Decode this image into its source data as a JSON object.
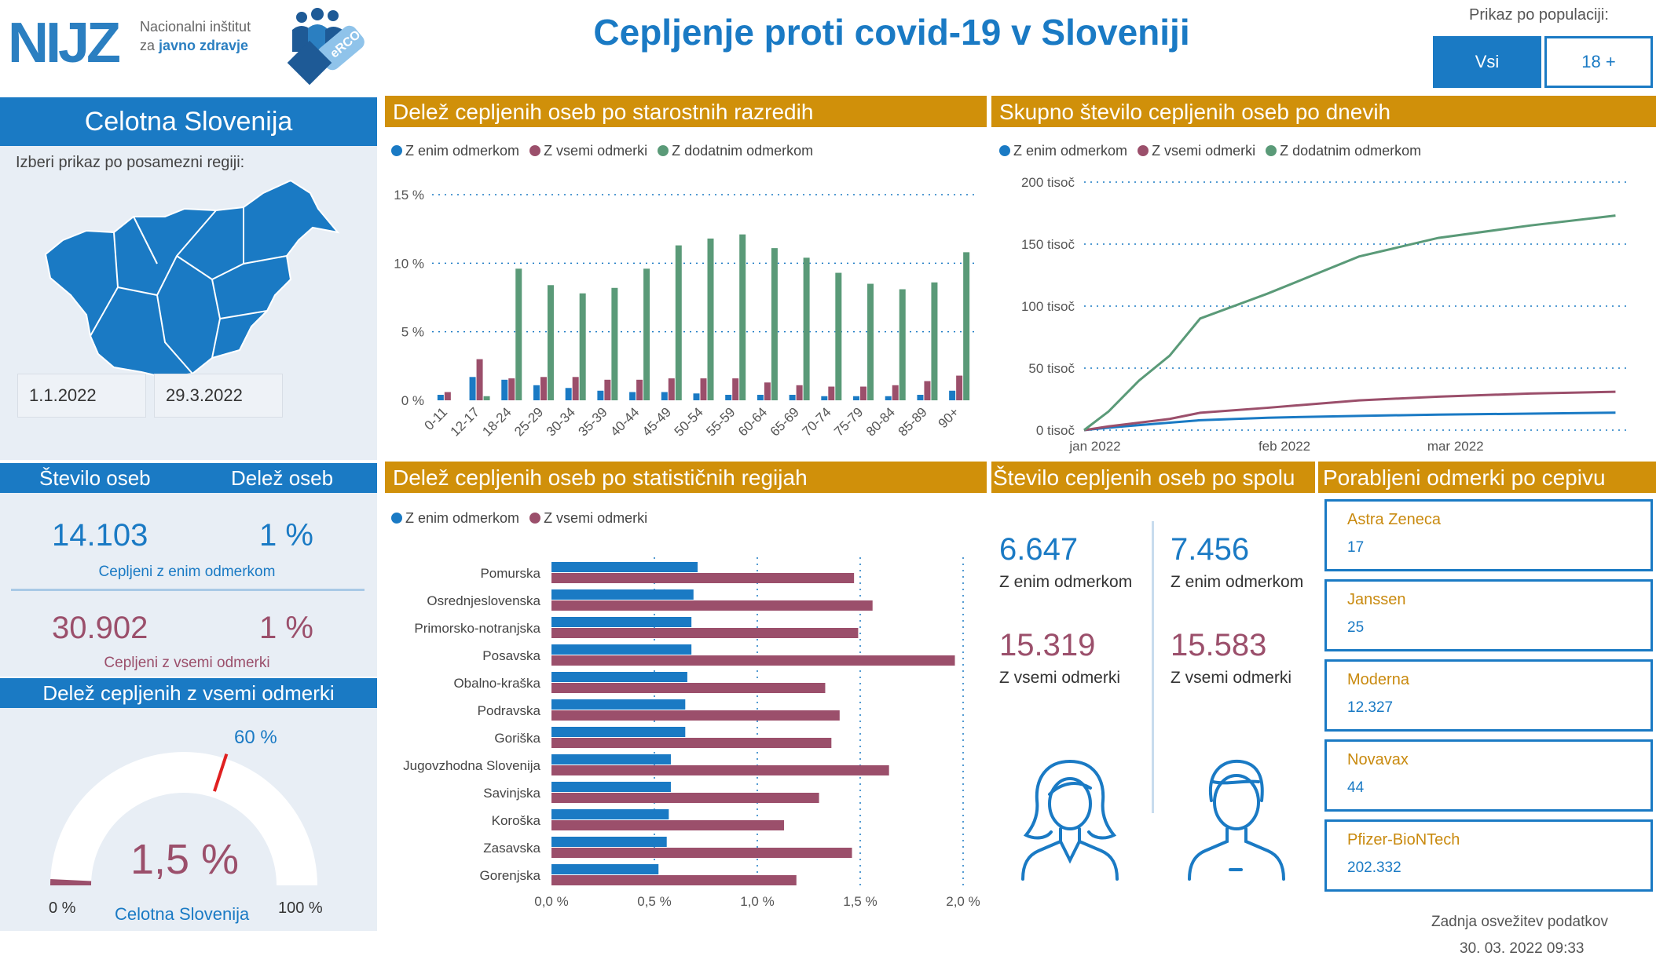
{
  "header": {
    "logo_text": "NIJZ",
    "logo_sub1": "Nacionalni inštitut",
    "logo_sub2a": "za ",
    "logo_sub2b": "javno zdravje",
    "erco_text": "eRCO",
    "title": "Cepljenje proti covid-19 v Sloveniji",
    "population_label": "Prikaz po populaciji:",
    "population_options": [
      "Vsi",
      "18 +"
    ],
    "population_selected": "Vsi"
  },
  "region_panel": {
    "title": "Celotna Slovenija",
    "instruction": "Izberi prikaz po posamezni regiji:",
    "date_from": "1.1.2022",
    "date_to": "29.3.2022"
  },
  "stats": {
    "col1_header": "Število oseb",
    "col2_header": "Delež oseb",
    "one_dose": {
      "count": "14.103",
      "share": "1 %",
      "label": "Cepljeni z enim odmerkom"
    },
    "all_doses": {
      "count": "30.902",
      "share": "1 %",
      "label": "Cepljeni z vsemi odmerki"
    }
  },
  "gauge": {
    "title": "Delež cepljenih z vsemi odmerki",
    "value_text": "1,5 %",
    "value": 1.5,
    "target": 60,
    "target_label": "60 %",
    "min_label": "0 %",
    "max_label": "100 %",
    "region_label": "Celotna Slovenija"
  },
  "age_chart": {
    "title": "Delež cepljenih oseb po starostnih razredih",
    "chart_data": {
      "type": "bar",
      "categories": [
        "0-11",
        "12-17",
        "18-24",
        "25-29",
        "30-34",
        "35-39",
        "40-44",
        "45-49",
        "50-54",
        "55-59",
        "60-64",
        "65-69",
        "70-74",
        "75-79",
        "80-84",
        "85-89",
        "90+"
      ],
      "series": [
        {
          "name": "Z enim odmerkom",
          "values": [
            0.4,
            1.7,
            1.5,
            1.1,
            0.9,
            0.7,
            0.6,
            0.6,
            0.5,
            0.4,
            0.4,
            0.4,
            0.3,
            0.3,
            0.3,
            0.4,
            0.7
          ]
        },
        {
          "name": "Z vsemi odmerki",
          "values": [
            0.6,
            3.0,
            1.6,
            1.7,
            1.7,
            1.5,
            1.5,
            1.6,
            1.6,
            1.6,
            1.3,
            1.1,
            1.0,
            1.0,
            1.1,
            1.4,
            1.8
          ]
        },
        {
          "name": "Z dodatnim odmerkom",
          "values": [
            0,
            0.3,
            9.6,
            8.4,
            7.8,
            8.2,
            9.6,
            11.3,
            11.8,
            12.1,
            11.1,
            10.4,
            9.3,
            8.5,
            8.1,
            8.6,
            10.8
          ]
        }
      ],
      "yticks": [
        "0 %",
        "5 %",
        "10 %",
        "15 %"
      ],
      "ylim": [
        0,
        15
      ],
      "colors": [
        "#1a7ac4",
        "#9b4f6b",
        "#5a9a78"
      ]
    }
  },
  "daily_chart": {
    "title": "Skupno število cepljenih oseb po dnevih",
    "chart_data": {
      "type": "line",
      "series": [
        {
          "name": "Z enim odmerkom",
          "x": [
            "2022-01-01",
            "2022-01-05",
            "2022-01-10",
            "2022-01-15",
            "2022-01-20",
            "2022-01-31",
            "2022-02-15",
            "2022-02-28",
            "2022-03-15",
            "2022-03-29"
          ],
          "values": [
            0,
            2000,
            4000,
            6000,
            8000,
            10000,
            11500,
            12500,
            13300,
            14100
          ]
        },
        {
          "name": "Z vsemi odmerki",
          "x": [
            "2022-01-01",
            "2022-01-05",
            "2022-01-10",
            "2022-01-15",
            "2022-01-20",
            "2022-01-31",
            "2022-02-15",
            "2022-02-28",
            "2022-03-15",
            "2022-03-29"
          ],
          "values": [
            0,
            3000,
            6000,
            9000,
            14000,
            18000,
            24000,
            27000,
            29500,
            30900
          ]
        },
        {
          "name": "Z dodatnim odmerkom",
          "x": [
            "2022-01-01",
            "2022-01-05",
            "2022-01-10",
            "2022-01-15",
            "2022-01-20",
            "2022-01-31",
            "2022-02-15",
            "2022-02-28",
            "2022-03-15",
            "2022-03-29"
          ],
          "values": [
            0,
            15000,
            40000,
            60000,
            90000,
            110000,
            140000,
            155000,
            165000,
            173000
          ]
        }
      ],
      "x_labels": [
        "jan 2022",
        "feb 2022",
        "mar 2022"
      ],
      "yticks": [
        "0 tisoč",
        "50 tisoč",
        "100 tisoč",
        "150 tisoč",
        "200 tisoč"
      ],
      "ylim": [
        0,
        200000
      ],
      "colors": [
        "#1a7ac4",
        "#9b4f6b",
        "#5a9a78"
      ]
    }
  },
  "region_chart": {
    "title": "Delež cepljenih oseb po statističnih regijah",
    "chart_data": {
      "type": "bar",
      "orientation": "horizontal",
      "categories": [
        "Pomurska",
        "Osrednjeslovenska",
        "Primorsko-notranjska",
        "Posavska",
        "Obalno-kraška",
        "Podravska",
        "Goriška",
        "Jugovzhodna Slovenija",
        "Savinjska",
        "Koroška",
        "Zasavska",
        "Gorenjska"
      ],
      "series": [
        {
          "name": "Z enim odmerkom",
          "values": [
            0.71,
            0.69,
            0.68,
            0.68,
            0.66,
            0.65,
            0.65,
            0.58,
            0.58,
            0.57,
            0.56,
            0.52
          ]
        },
        {
          "name": "Z vsemi odmerki",
          "values": [
            1.47,
            1.56,
            1.49,
            1.96,
            1.33,
            1.4,
            1.36,
            1.64,
            1.3,
            1.13,
            1.46,
            1.19
          ]
        }
      ],
      "xticks": [
        "0,0 %",
        "0,5 %",
        "1,0 %",
        "1,5 %",
        "2,0 %"
      ],
      "xlim": [
        0,
        2.0
      ],
      "colors": [
        "#1a7ac4",
        "#9b4f6b"
      ]
    }
  },
  "gender": {
    "title": "Število cepljenih oseb po spolu",
    "female": {
      "one_dose": "6.647",
      "one_dose_label": "Z enim odmerkom",
      "all_doses": "15.319",
      "all_doses_label": "Z vsemi odmerki"
    },
    "male": {
      "one_dose": "7.456",
      "one_dose_label": "Z enim odmerkom",
      "all_doses": "15.583",
      "all_doses_label": "Z vsemi odmerki"
    }
  },
  "vaccines": {
    "title": "Porabljeni odmerki po cepivu",
    "items": [
      {
        "name": "Astra Zeneca",
        "value": "17"
      },
      {
        "name": "Janssen",
        "value": "25"
      },
      {
        "name": "Moderna",
        "value": "12.327"
      },
      {
        "name": "Novavax",
        "value": "44"
      },
      {
        "name": "Pfizer-BioNTech",
        "value": "202.332"
      }
    ]
  },
  "footer": {
    "refresh_label": "Zadnja osvežitev podatkov",
    "refresh_time": "30. 03. 2022 09:33"
  }
}
